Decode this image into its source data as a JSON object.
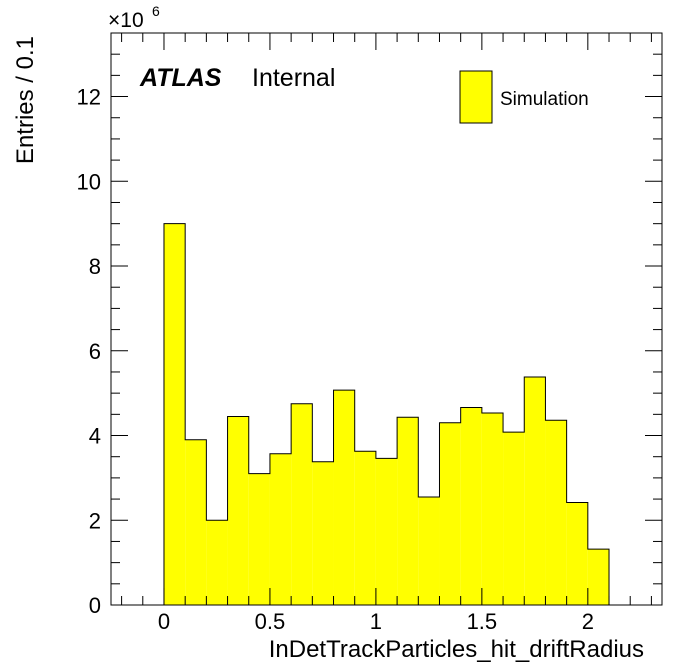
{
  "chart_data": {
    "type": "bar",
    "histogram": true,
    "bin_width": 0.1,
    "bin_edges": [
      0.0,
      0.1,
      0.2,
      0.3,
      0.4,
      0.5,
      0.6,
      0.7,
      0.8,
      0.9,
      1.0,
      1.1,
      1.2,
      1.3,
      1.4,
      1.5,
      1.6,
      1.7,
      1.8,
      1.9,
      2.0,
      2.1
    ],
    "series": [
      {
        "name": "Simulation",
        "color": "#ffff00",
        "values": [
          9.0,
          3.9,
          2.0,
          4.45,
          3.1,
          3.57,
          4.75,
          3.38,
          5.07,
          3.63,
          3.46,
          4.43,
          2.55,
          4.3,
          4.66,
          4.53,
          4.08,
          5.38,
          4.36,
          2.42,
          1.32
        ]
      }
    ],
    "xlabel": "InDetTrackParticles_hit_driftRadius",
    "ylabel": "Entries / 0.1",
    "y_multiplier": "×10",
    "y_multiplier_exponent": "6",
    "xlim": [
      -0.25,
      2.35
    ],
    "ylim": [
      0,
      13.5
    ],
    "x_ticks": [
      {
        "value": 0,
        "label": "0"
      },
      {
        "value": 0.5,
        "label": "0.5"
      },
      {
        "value": 1,
        "label": "1"
      },
      {
        "value": 1.5,
        "label": "1.5"
      },
      {
        "value": 2,
        "label": "2"
      }
    ],
    "y_ticks": [
      {
        "value": 0,
        "label": "0"
      },
      {
        "value": 2,
        "label": "2"
      },
      {
        "value": 4,
        "label": "4"
      },
      {
        "value": 6,
        "label": "6"
      },
      {
        "value": 8,
        "label": "8"
      },
      {
        "value": 10,
        "label": "10"
      },
      {
        "value": 12,
        "label": "12"
      }
    ],
    "x_minor_step": 0.1,
    "y_minor_step": 0.5,
    "legend_placement": "top-right",
    "grid": false,
    "annotations": {
      "experiment": "ATLAS",
      "status": "Internal"
    }
  }
}
